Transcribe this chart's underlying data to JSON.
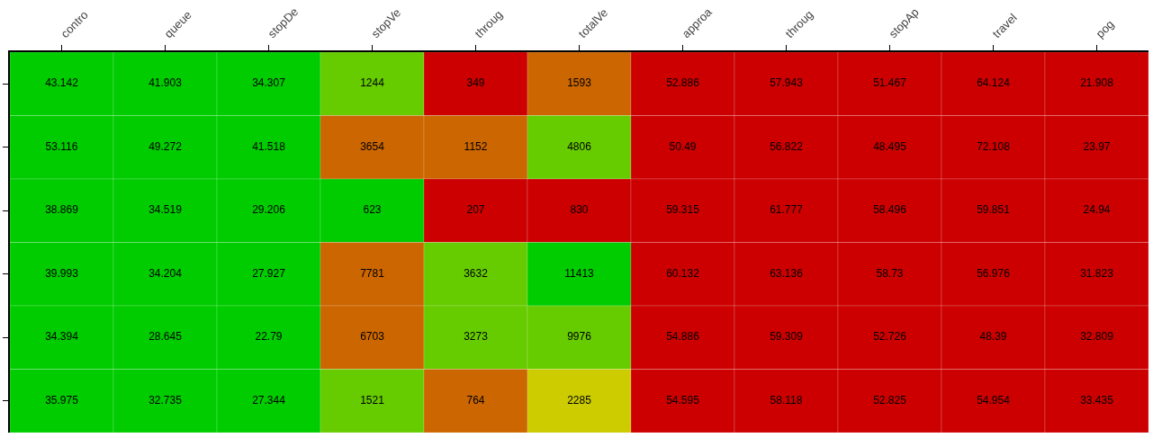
{
  "chart_data": {
    "type": "heatmap",
    "categories": [
      "contro",
      "queue",
      "stopDe",
      "stopVe",
      "throug",
      "totalVe",
      "approa",
      "throug",
      "stopAp",
      "travel",
      "pog"
    ],
    "y_categories": [
      null,
      null,
      null,
      null,
      null,
      null
    ],
    "cells": [
      [
        43.142,
        41.903,
        34.307,
        1244,
        349,
        1593,
        52.886,
        57.943,
        51.467,
        64.124,
        21.908
      ],
      [
        53.116,
        49.272,
        41.518,
        3654,
        1152,
        4806,
        50.49,
        56.822,
        48.495,
        72.108,
        23.97
      ],
      [
        38.869,
        34.519,
        29.206,
        623,
        207,
        830,
        59.315,
        61.777,
        58.496,
        59.851,
        24.94
      ],
      [
        39.993,
        34.204,
        27.927,
        7781,
        3632,
        11413,
        60.132,
        63.136,
        58.73,
        56.976,
        31.823
      ],
      [
        34.394,
        28.645,
        22.79,
        6703,
        3273,
        9976,
        54.886,
        59.309,
        52.726,
        48.39,
        32.809
      ],
      [
        35.975,
        32.735,
        27.344,
        1521,
        764,
        2285,
        54.595,
        58.118,
        52.825,
        54.954,
        33.435
      ]
    ],
    "colors": [
      [
        "#00cc00",
        "#00cc00",
        "#00cc00",
        "#66cc00",
        "#cc0000",
        "#cc6600",
        "#cc0000",
        "#cc0000",
        "#cc0000",
        "#cc0000",
        "#cc0000"
      ],
      [
        "#00cc00",
        "#00cc00",
        "#00cc00",
        "#cc6600",
        "#cc6600",
        "#66cc00",
        "#cc0000",
        "#cc0000",
        "#cc0000",
        "#cc0000",
        "#cc0000"
      ],
      [
        "#00cc00",
        "#00cc00",
        "#00cc00",
        "#00cc00",
        "#cc0000",
        "#cc0000",
        "#cc0000",
        "#cc0000",
        "#cc0000",
        "#cc0000",
        "#cc0000"
      ],
      [
        "#00cc00",
        "#00cc00",
        "#00cc00",
        "#cc6600",
        "#66cc00",
        "#00cc00",
        "#cc0000",
        "#cc0000",
        "#cc0000",
        "#cc0000",
        "#cc0000"
      ],
      [
        "#00cc00",
        "#00cc00",
        "#00cc00",
        "#cc6600",
        "#66cc00",
        "#66cc00",
        "#cc0000",
        "#cc0000",
        "#cc0000",
        "#cc0000",
        "#cc0000"
      ],
      [
        "#00cc00",
        "#00cc00",
        "#00cc00",
        "#66cc00",
        "#cc6600",
        "#cccc00",
        "#cc0000",
        "#cc0000",
        "#cc0000",
        "#cc0000",
        "#cc0000"
      ]
    ],
    "data_labels": true
  }
}
